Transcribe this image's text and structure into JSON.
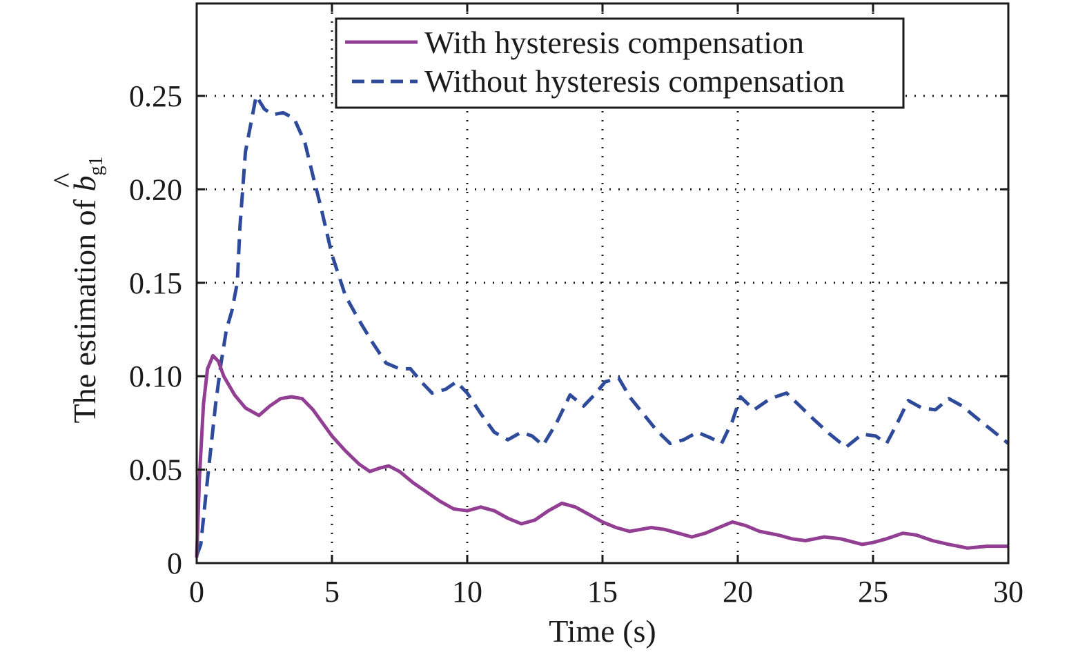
{
  "chart_data": {
    "type": "line",
    "title": "",
    "xlabel": "Time (s)",
    "ylabel": {
      "prefix": "The estimation of ",
      "symbol": "b",
      "accent": "^",
      "subscript": "g1"
    },
    "xlim": [
      0,
      30
    ],
    "ylim": [
      0,
      0.3
    ],
    "xticks": [
      0,
      5,
      10,
      15,
      20,
      25,
      30
    ],
    "xtick_labels": [
      "0",
      "5",
      "10",
      "15",
      "20",
      "25",
      "30"
    ],
    "yticks": [
      0,
      0.05,
      0.1,
      0.15,
      0.2,
      0.25
    ],
    "ytick_labels": [
      "0",
      "0.05",
      "0.10",
      "0.15",
      "0.20",
      "0.25"
    ],
    "grid": true,
    "grid_style": "dotted",
    "legend_position": "top-right",
    "series": [
      {
        "name": "With hysteresis compensation",
        "color": "#913e93",
        "style": "solid",
        "x": [
          0,
          0.1,
          0.25,
          0.4,
          0.6,
          0.8,
          1.0,
          1.4,
          1.8,
          2.3,
          2.7,
          3.1,
          3.5,
          3.9,
          4.3,
          4.7,
          5.0,
          5.5,
          6.0,
          6.4,
          6.8,
          7.1,
          7.5,
          8.0,
          8.5,
          9.0,
          9.5,
          10.0,
          10.5,
          11.0,
          11.5,
          12.0,
          12.5,
          13.0,
          13.5,
          14.0,
          14.5,
          15.0,
          15.5,
          16.0,
          16.4,
          16.8,
          17.3,
          17.8,
          18.3,
          18.8,
          19.3,
          19.8,
          20.3,
          20.8,
          21.5,
          22.0,
          22.5,
          23.2,
          23.8,
          24.6,
          25.0,
          25.5,
          26.1,
          26.6,
          27.2,
          27.8,
          28.5,
          29.2,
          30.0
        ],
        "values": [
          0.003,
          0.045,
          0.085,
          0.104,
          0.111,
          0.108,
          0.1,
          0.09,
          0.083,
          0.079,
          0.084,
          0.088,
          0.089,
          0.088,
          0.082,
          0.074,
          0.068,
          0.06,
          0.053,
          0.049,
          0.051,
          0.052,
          0.049,
          0.043,
          0.038,
          0.033,
          0.029,
          0.028,
          0.03,
          0.028,
          0.024,
          0.021,
          0.023,
          0.028,
          0.032,
          0.03,
          0.026,
          0.022,
          0.019,
          0.017,
          0.018,
          0.019,
          0.018,
          0.016,
          0.014,
          0.016,
          0.019,
          0.022,
          0.02,
          0.017,
          0.015,
          0.013,
          0.012,
          0.014,
          0.013,
          0.01,
          0.011,
          0.013,
          0.016,
          0.015,
          0.012,
          0.01,
          0.008,
          0.009,
          0.009
        ]
      },
      {
        "name": "Without hysteresis compensation",
        "color": "#2e4a9b",
        "style": "dashed",
        "x": [
          0,
          0.15,
          0.4,
          0.7,
          0.9,
          1.1,
          1.3,
          1.5,
          1.6,
          1.8,
          2.0,
          2.2,
          2.5,
          2.8,
          3.2,
          3.6,
          4.0,
          4.3,
          4.6,
          5.0,
          5.5,
          6.0,
          6.5,
          7.0,
          7.5,
          7.9,
          8.3,
          8.7,
          9.2,
          9.6,
          10.0,
          10.5,
          11.0,
          11.5,
          12.0,
          12.4,
          12.8,
          13.3,
          13.8,
          14.3,
          14.7,
          15.1,
          15.6,
          16.0,
          16.5,
          17.0,
          17.5,
          18.0,
          18.5,
          19.0,
          19.4,
          19.8,
          20.1,
          20.6,
          21.2,
          21.8,
          22.3,
          22.8,
          23.4,
          24.0,
          24.6,
          25.1,
          25.5,
          25.9,
          26.3,
          26.8,
          27.3,
          27.8,
          28.3,
          28.8,
          29.4,
          30.0
        ],
        "values": [
          0.004,
          0.01,
          0.045,
          0.085,
          0.107,
          0.125,
          0.135,
          0.15,
          0.18,
          0.22,
          0.235,
          0.25,
          0.243,
          0.24,
          0.241,
          0.238,
          0.225,
          0.207,
          0.19,
          0.165,
          0.143,
          0.13,
          0.118,
          0.107,
          0.104,
          0.104,
          0.097,
          0.091,
          0.093,
          0.097,
          0.091,
          0.08,
          0.07,
          0.066,
          0.07,
          0.068,
          0.063,
          0.075,
          0.09,
          0.084,
          0.09,
          0.097,
          0.099,
          0.089,
          0.08,
          0.071,
          0.064,
          0.066,
          0.07,
          0.067,
          0.064,
          0.076,
          0.089,
          0.082,
          0.088,
          0.091,
          0.084,
          0.077,
          0.069,
          0.062,
          0.069,
          0.068,
          0.064,
          0.075,
          0.087,
          0.083,
          0.082,
          0.088,
          0.084,
          0.078,
          0.071,
          0.064
        ]
      }
    ]
  }
}
